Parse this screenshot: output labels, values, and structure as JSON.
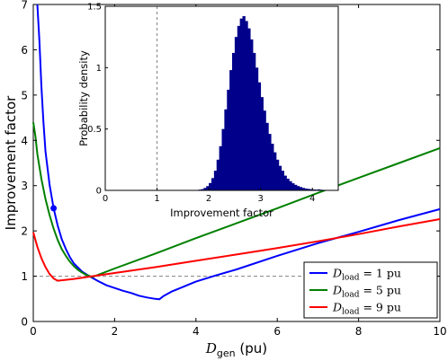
{
  "chart_data": [
    {
      "type": "line",
      "xlabel": {
        "main": "D",
        "sub": "gen",
        "unit": " (pu)"
      },
      "ylabel": "Improvement factor",
      "xlim": [
        0,
        10
      ],
      "ylim": [
        0,
        7
      ],
      "xticks": [
        "0",
        "2",
        "4",
        "6",
        "8",
        "10"
      ],
      "yticks": [
        "0",
        "1",
        "2",
        "3",
        "4",
        "5",
        "6",
        "7"
      ],
      "reference_line": {
        "y": 1,
        "style": "dashed"
      },
      "legend": {
        "placement": "bottom-right"
      },
      "series": [
        {
          "name": {
            "sym": "D",
            "sub": "load",
            "rest": " = 1 pu"
          },
          "color": "#0000ff",
          "x": [
            0.1,
            0.15,
            0.2,
            0.25,
            0.3,
            0.4,
            0.5,
            0.6,
            0.7,
            0.8,
            0.9,
            1.0,
            1.2,
            1.4,
            1.6,
            1.8,
            2.0,
            2.2,
            2.4,
            2.6,
            2.8,
            3.0,
            3.1,
            3.2,
            3.4,
            3.7,
            4.0,
            4.5,
            5.0,
            6.0,
            7.0,
            8.0,
            9.0,
            10.0
          ],
          "y": [
            7.0,
            6.2,
            5.2,
            4.4,
            3.75,
            3.02,
            2.5,
            2.12,
            1.82,
            1.6,
            1.42,
            1.28,
            1.1,
            0.99,
            0.89,
            0.8,
            0.74,
            0.68,
            0.63,
            0.57,
            0.53,
            0.5,
            0.49,
            0.56,
            0.66,
            0.77,
            0.88,
            1.02,
            1.15,
            1.45,
            1.73,
            1.98,
            2.24,
            2.48
          ],
          "marker": {
            "x": 0.5,
            "y": 2.5
          }
        },
        {
          "name": {
            "sym": "D",
            "sub": "load",
            "rest": " = 5 pu"
          },
          "color": "#008000",
          "x": [
            0.0,
            0.05,
            0.1,
            0.2,
            0.3,
            0.4,
            0.5,
            0.6,
            0.7,
            0.8,
            0.9,
            1.0,
            1.1,
            1.2,
            1.3,
            1.4,
            1.45,
            2.0,
            3.0,
            4.0,
            5.0,
            6.0,
            7.0,
            8.0,
            9.0,
            10.0
          ],
          "y": [
            4.4,
            4.1,
            3.7,
            3.15,
            2.7,
            2.35,
            2.05,
            1.8,
            1.6,
            1.45,
            1.32,
            1.22,
            1.14,
            1.08,
            1.03,
            1.0,
            0.98,
            1.17,
            1.5,
            1.84,
            2.17,
            2.5,
            2.84,
            3.17,
            3.5,
            3.83
          ]
        },
        {
          "name": {
            "sym": "D",
            "sub": "load",
            "rest": " = 9 pu"
          },
          "color": "#ff0000",
          "x": [
            0.0,
            0.1,
            0.2,
            0.3,
            0.4,
            0.5,
            0.6,
            1.0,
            2.0,
            3.0,
            4.0,
            5.0,
            6.0,
            7.0,
            8.0,
            9.0,
            10.0
          ],
          "y": [
            1.97,
            1.65,
            1.4,
            1.2,
            1.05,
            0.95,
            0.9,
            0.94,
            1.07,
            1.2,
            1.34,
            1.48,
            1.62,
            1.77,
            1.93,
            2.1,
            2.26
          ]
        }
      ]
    },
    {
      "type": "bar",
      "role": "inset-histogram",
      "xlabel": "Improvement factor",
      "ylabel": "Probability density",
      "xlim": [
        0,
        4.5
      ],
      "ylim": [
        0,
        1.5
      ],
      "xticks": [
        "0",
        "1",
        "2",
        "3",
        "4"
      ],
      "yticks": [
        "0",
        "0.5",
        "1",
        "1.5"
      ],
      "reference_line": {
        "x": 1,
        "style": "dashed"
      },
      "color": "#00008b",
      "bin_start": 1.75,
      "bin_width": 0.05,
      "values": [
        0.003,
        0.006,
        0.01,
        0.02,
        0.035,
        0.06,
        0.1,
        0.16,
        0.25,
        0.36,
        0.5,
        0.66,
        0.82,
        0.98,
        1.12,
        1.25,
        1.34,
        1.4,
        1.42,
        1.38,
        1.32,
        1.23,
        1.12,
        1.0,
        0.88,
        0.76,
        0.65,
        0.55,
        0.46,
        0.38,
        0.31,
        0.25,
        0.2,
        0.16,
        0.12,
        0.095,
        0.075,
        0.058,
        0.045,
        0.035,
        0.027,
        0.02,
        0.015,
        0.012,
        0.009,
        0.007,
        0.006,
        0.008,
        0.005,
        0.003
      ]
    }
  ]
}
